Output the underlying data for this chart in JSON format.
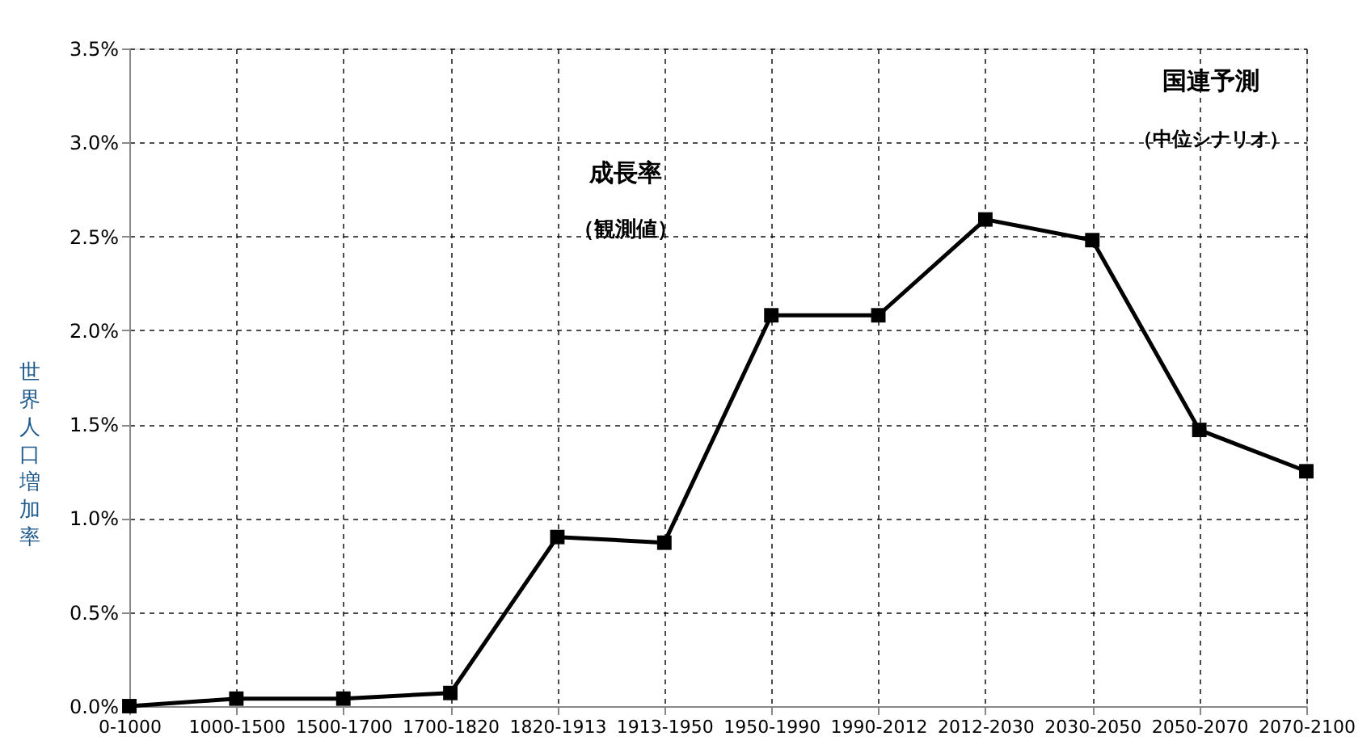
{
  "chart_data": {
    "type": "line",
    "ylabel": "世界人口増加率",
    "categories": [
      "0-1000",
      "1000-1500",
      "1500-1700",
      "1700-1820",
      "1820-1913",
      "1913-1950",
      "1950-1990",
      "1990-2012",
      "2012-2030",
      "2030-2050",
      "2050-2070",
      "2070-2100"
    ],
    "series": [
      {
        "color": "#000000",
        "values": [
          0.0,
          0.04,
          0.04,
          0.07,
          0.9,
          0.87,
          2.08,
          2.08,
          2.59,
          2.48,
          1.47,
          1.25
        ]
      }
    ],
    "ylim": [
      0,
      3.5
    ],
    "yticks": [
      {
        "value": 0,
        "label": "0.0%"
      },
      {
        "value": 0.5,
        "label": "0.5%"
      },
      {
        "value": 1,
        "label": "1.0%"
      },
      {
        "value": 1.5,
        "label": "1.5%"
      },
      {
        "value": 2,
        "label": "2.0%"
      },
      {
        "value": 2.5,
        "label": "2.5%"
      },
      {
        "value": 3,
        "label": "3.0%"
      },
      {
        "value": 3.5,
        "label": "3.5%"
      }
    ],
    "grid": true,
    "marker": "square",
    "line_style": "solid",
    "annotations": [
      "成長率",
      "（観測値）",
      "国連予測",
      "（中位シナリオ）"
    ]
  }
}
